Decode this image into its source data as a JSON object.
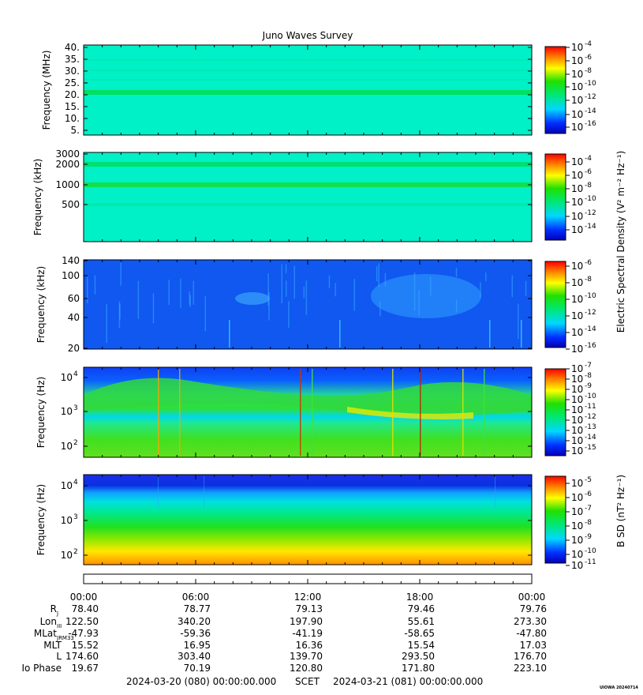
{
  "title": "Juno Waves Survey",
  "watermark": "UIOWA 20240714",
  "panels": [
    {
      "ylabel": "Frequency (MHz)",
      "yticks": [
        "40.",
        "35.",
        "30.",
        "25.",
        "20.",
        "15.",
        "10.",
        "5."
      ],
      "cbar_ticks": [
        "10",
        "10",
        "10",
        "10",
        "10",
        "10",
        "10"
      ],
      "cbar_exps": [
        "-4",
        "-6",
        "-8",
        "-10",
        "-12",
        "-14",
        "-16"
      ]
    },
    {
      "ylabel": "Frequency (kHz)",
      "yticks": [
        "3000",
        "2000",
        "1000",
        "500"
      ],
      "cbar_ticks": [
        "10",
        "10",
        "10",
        "10",
        "10",
        "10"
      ],
      "cbar_exps": [
        "-4",
        "-6",
        "-8",
        "-10",
        "-12",
        "-14"
      ]
    },
    {
      "ylabel": "Frequency (kHz)",
      "yticks": [
        "140",
        "100",
        "60",
        "40",
        "20"
      ],
      "cbar_ticks": [
        "10",
        "10",
        "10",
        "10",
        "10",
        "10"
      ],
      "cbar_exps": [
        "-6",
        "-8",
        "-10",
        "-12",
        "-14",
        "-16"
      ]
    },
    {
      "ylabel": "Frequency (Hz)",
      "yticks": [
        "10",
        "10",
        "10"
      ],
      "ytick_exps": [
        "4",
        "3",
        "2"
      ],
      "cbar_ticks": [
        "10",
        "10",
        "10",
        "10",
        "10",
        "10",
        "10",
        "10",
        "10"
      ],
      "cbar_exps": [
        "-7",
        "-8",
        "-9",
        "-10",
        "-11",
        "-12",
        "-13",
        "-14",
        "-15"
      ]
    },
    {
      "ylabel": "Frequency (Hz)",
      "yticks": [
        "10",
        "10",
        "10"
      ],
      "ytick_exps": [
        "4",
        "3",
        "2"
      ],
      "cbar_ticks": [
        "10",
        "10",
        "10",
        "10",
        "10",
        "10",
        "10"
      ],
      "cbar_exps": [
        "-5",
        "-6",
        "-7",
        "-8",
        "-9",
        "-10",
        "-11"
      ]
    }
  ],
  "cbar_label_electric": "Electric Spectral Density (V² m⁻² Hz⁻¹)",
  "cbar_label_magnetic": "B SD (nT² Hz⁻¹)",
  "time_ticks": [
    "00:00",
    "06:00",
    "12:00",
    "18:00",
    "00:00"
  ],
  "ephemeris": [
    {
      "label": "R",
      "sub": "J",
      "values": [
        "78.40",
        "78.77",
        "79.13",
        "79.46",
        "79.76"
      ]
    },
    {
      "label": "Lon",
      "sub": "III",
      "values": [
        "122.50",
        "340.20",
        "197.90",
        "55.61",
        "273.30"
      ]
    },
    {
      "label": "MLat",
      "sub": "JRM33",
      "values": [
        "-47.93",
        "-59.36",
        "-41.19",
        "-58.65",
        "-47.80"
      ]
    },
    {
      "label": "MLT",
      "sub": "",
      "values": [
        "15.52",
        "16.95",
        "16.36",
        "15.54",
        "17.03"
      ]
    },
    {
      "label": "L",
      "sub": "",
      "values": [
        "174.60",
        "303.40",
        "139.70",
        "293.50",
        "176.70"
      ]
    },
    {
      "label": "Io Phase",
      "sub": "",
      "values": [
        "19.67",
        "70.19",
        "120.80",
        "171.80",
        "223.10"
      ]
    }
  ],
  "footer": {
    "start": "2024-03-20 (080) 00:00:00.000",
    "scet": "SCET",
    "end": "2024-03-21 (081) 00:00:00.000"
  },
  "chart_data": {
    "type": "heatmap",
    "title": "Juno Waves Survey",
    "x_range": [
      "2024-03-20 00:00",
      "2024-03-21 00:00"
    ],
    "panels": [
      {
        "ylabel": "Frequency (MHz)",
        "ylim": [
          3.5,
          41
        ],
        "yscale": "linear",
        "clim_exp": [
          -17,
          -4
        ],
        "bands": [
          21
        ]
      },
      {
        "ylabel": "Frequency (kHz)",
        "ylim": [
          100,
          3000
        ],
        "yscale": "log",
        "clim_exp": [
          -15,
          -3
        ],
        "bands": [
          2000,
          1000,
          500
        ]
      },
      {
        "ylabel": "Frequency (kHz)",
        "ylim": [
          20,
          140
        ],
        "yscale": "log",
        "clim_exp": [
          -16,
          -6
        ]
      },
      {
        "ylabel": "Frequency (Hz)",
        "ylim": [
          50,
          20000
        ],
        "yscale": "log",
        "clim_exp": [
          -15,
          -7
        ]
      },
      {
        "ylabel": "Frequency (Hz)",
        "ylim": [
          50,
          20000
        ],
        "yscale": "log",
        "clim_exp": [
          -11,
          -4
        ]
      }
    ]
  }
}
